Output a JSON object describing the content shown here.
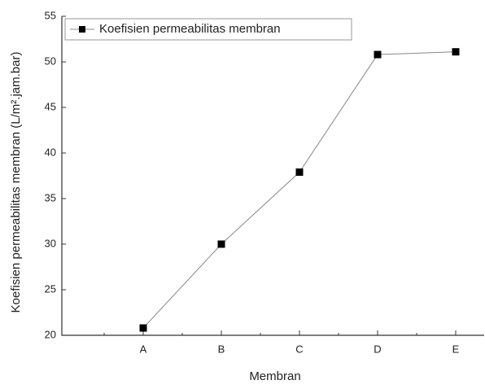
{
  "chart_data": {
    "type": "line",
    "x_label": "Membran",
    "y_label": "Koefisien permeabilitas membran (L/m².jam.bar)",
    "categories": [
      "A",
      "B",
      "C",
      "D",
      "E"
    ],
    "series": [
      {
        "name": "Koefisien permeabilitas membran",
        "color": "#000000",
        "values": [
          20.8,
          30,
          37.9,
          50.8,
          51.1
        ]
      }
    ],
    "ylim": [
      20,
      55
    ],
    "yticks": [
      20,
      25,
      30,
      35,
      40,
      45,
      50,
      55
    ],
    "legend": "top-left",
    "grid": false
  }
}
